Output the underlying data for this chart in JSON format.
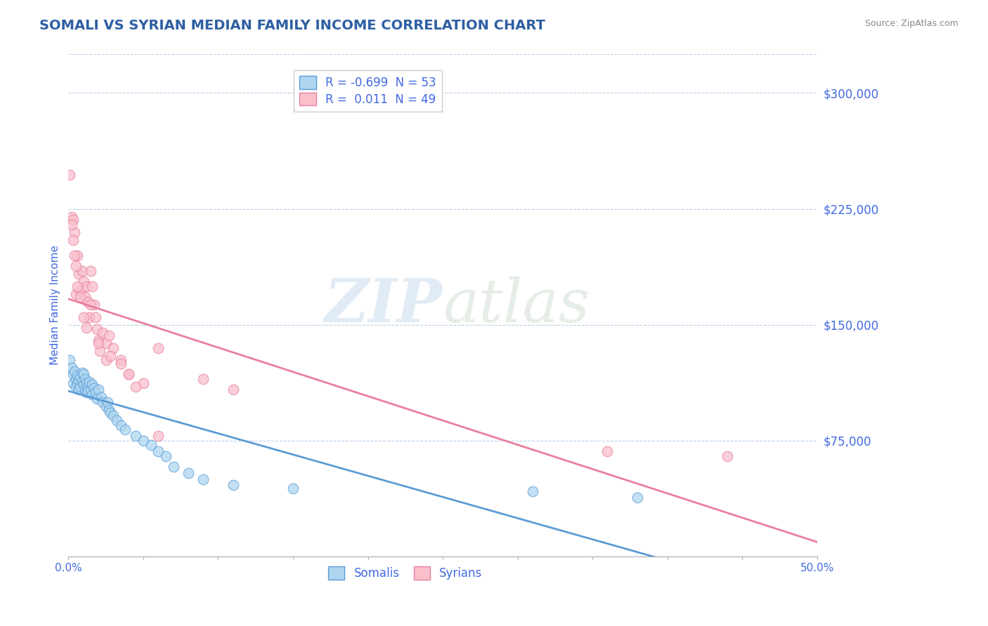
{
  "title": "SOMALI VS SYRIAN MEDIAN FAMILY INCOME CORRELATION CHART",
  "source": "Source: ZipAtlas.com",
  "ylabel": "Median Family Income",
  "xmin": 0.0,
  "xmax": 0.5,
  "ymin": 0,
  "ymax": 325000,
  "yticks": [
    0,
    75000,
    150000,
    225000,
    300000
  ],
  "ytick_labels": [
    "",
    "$75,000",
    "$150,000",
    "$225,000",
    "$300,000"
  ],
  "grid_color": "#b8cfe8",
  "background_color": "#ffffff",
  "watermark_zip": "ZIP",
  "watermark_atlas": "atlas",
  "somali_color": "#aed6f1",
  "syrian_color": "#f9c0cb",
  "somali_edge_color": "#5b9bd5",
  "syrian_edge_color": "#e87ea1",
  "somali_line_color": "#5b9bd5",
  "syrian_line_color": "#e87ea1",
  "legend_somali_label": "R = -0.699  N = 53",
  "legend_syrian_label": "R =  0.011  N = 49",
  "title_color": "#2e5fa3",
  "yaxis_label_color": "#4169E1",
  "axis_tick_color": "#4169E1",
  "somali_x": [
    0.001,
    0.002,
    0.003,
    0.003,
    0.004,
    0.005,
    0.005,
    0.006,
    0.006,
    0.007,
    0.007,
    0.008,
    0.008,
    0.009,
    0.009,
    0.01,
    0.01,
    0.011,
    0.011,
    0.012,
    0.012,
    0.013,
    0.013,
    0.014,
    0.015,
    0.016,
    0.016,
    0.017,
    0.018,
    0.019,
    0.02,
    0.022,
    0.023,
    0.025,
    0.026,
    0.027,
    0.028,
    0.03,
    0.032,
    0.035,
    0.038,
    0.045,
    0.05,
    0.055,
    0.06,
    0.065,
    0.07,
    0.08,
    0.09,
    0.11,
    0.15,
    0.31,
    0.38
  ],
  "somali_y": [
    127000,
    122000,
    118000,
    112000,
    120000,
    115000,
    110000,
    117000,
    112000,
    114000,
    108000,
    116000,
    110000,
    119000,
    113000,
    118000,
    111000,
    115000,
    108000,
    112000,
    106000,
    110000,
    107000,
    113000,
    108000,
    111000,
    105000,
    109000,
    106000,
    102000,
    108000,
    103000,
    100000,
    97000,
    100000,
    95000,
    93000,
    91000,
    88000,
    85000,
    82000,
    78000,
    75000,
    72000,
    68000,
    65000,
    58000,
    54000,
    50000,
    46000,
    44000,
    42000,
    38000
  ],
  "syrian_x": [
    0.001,
    0.002,
    0.003,
    0.004,
    0.005,
    0.006,
    0.007,
    0.008,
    0.009,
    0.01,
    0.011,
    0.012,
    0.013,
    0.014,
    0.015,
    0.016,
    0.017,
    0.018,
    0.019,
    0.02,
    0.021,
    0.023,
    0.025,
    0.027,
    0.03,
    0.035,
    0.04,
    0.05,
    0.06,
    0.002,
    0.003,
    0.004,
    0.005,
    0.006,
    0.008,
    0.01,
    0.012,
    0.015,
    0.02,
    0.025,
    0.028,
    0.035,
    0.04,
    0.045,
    0.06,
    0.09,
    0.11,
    0.36,
    0.44
  ],
  "syrian_y": [
    247000,
    220000,
    218000,
    210000,
    170000,
    195000,
    183000,
    172000,
    185000,
    178000,
    168000,
    175000,
    165000,
    155000,
    185000,
    175000,
    163000,
    155000,
    147000,
    140000,
    133000,
    145000,
    138000,
    143000,
    135000,
    127000,
    118000,
    112000,
    135000,
    215000,
    205000,
    195000,
    188000,
    175000,
    168000,
    155000,
    148000,
    163000,
    138000,
    127000,
    130000,
    125000,
    118000,
    110000,
    78000,
    115000,
    108000,
    68000,
    65000
  ]
}
